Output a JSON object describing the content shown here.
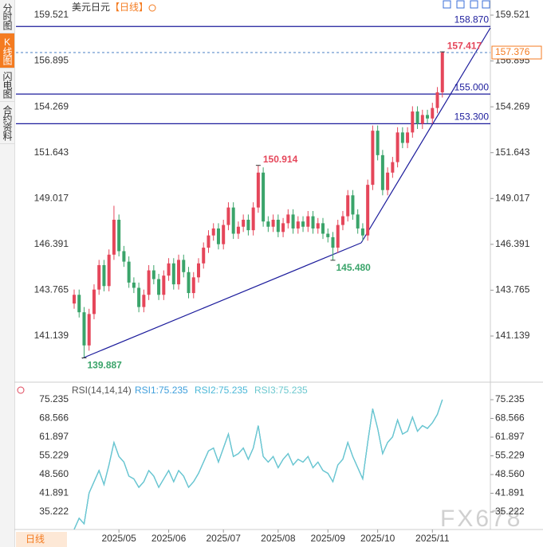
{
  "sidebar_tabs": [
    "分时图",
    "K线图",
    "闪电图",
    "合约资料"
  ],
  "active_tab": 1,
  "period_button": "日线",
  "watermark": "FX678",
  "chart_data": [
    {
      "type": "candlestick",
      "title": "美元日元",
      "period": "【日线】",
      "categories": [
        null,
        null,
        null,
        null,
        null,
        null,
        null,
        null,
        null,
        "2025/05",
        null,
        null,
        null,
        null,
        null,
        null,
        null,
        null,
        null,
        "2025/06",
        null,
        null,
        null,
        null,
        null,
        null,
        null,
        null,
        null,
        null,
        "2025/07",
        null,
        null,
        null,
        null,
        null,
        null,
        null,
        null,
        null,
        null,
        "2025/08",
        null,
        null,
        null,
        null,
        null,
        null,
        null,
        null,
        null,
        "2025/09",
        null,
        null,
        null,
        null,
        null,
        null,
        null,
        null,
        null,
        "2025/10",
        null,
        null,
        null,
        null,
        null,
        null,
        null,
        null,
        null,
        null,
        "2025/11",
        null,
        null
      ],
      "open": [
        143.0,
        143.5,
        142.5,
        140.6,
        142.4,
        143.8,
        145.2,
        144.0,
        145.8,
        147.8,
        146.0,
        145.4,
        144.2,
        143.9,
        142.8,
        143.5,
        144.9,
        144.4,
        143.5,
        144.6,
        145.3,
        144.1,
        145.5,
        144.8,
        143.6,
        144.5,
        145.3,
        146.2,
        146.9,
        147.3,
        146.4,
        147.5,
        148.5,
        147.0,
        147.4,
        147.8,
        147.2,
        148.5,
        150.5,
        147.7,
        147.4,
        147.8,
        147.1,
        147.6,
        148.1,
        147.3,
        147.7,
        147.4,
        148.0,
        147.3,
        147.6,
        147.0,
        146.8,
        146.2,
        147.5,
        148.0,
        149.2,
        148.1,
        147.3,
        146.9,
        149.8,
        152.9,
        151.5,
        149.5,
        150.5,
        151.1,
        152.8,
        152.2,
        152.8,
        154.0,
        153.3,
        153.8,
        153.6,
        154.2,
        155.1
      ],
      "high": [
        143.8,
        143.8,
        142.8,
        142.7,
        144.1,
        145.5,
        145.5,
        146.1,
        148.6,
        148.1,
        146.3,
        145.7,
        144.5,
        144.2,
        143.8,
        145.2,
        145.2,
        144.7,
        144.9,
        145.6,
        145.6,
        145.8,
        145.8,
        145.1,
        144.8,
        145.6,
        146.5,
        147.2,
        147.6,
        147.6,
        147.8,
        148.8,
        148.8,
        147.7,
        148.1,
        148.1,
        148.8,
        150.914,
        150.8,
        148.0,
        148.1,
        148.1,
        147.9,
        148.4,
        148.4,
        148.0,
        148.0,
        148.3,
        148.3,
        147.9,
        147.9,
        147.3,
        147.1,
        147.8,
        148.3,
        149.5,
        149.5,
        148.4,
        147.6,
        150.1,
        153.2,
        153.2,
        151.8,
        150.8,
        151.4,
        153.1,
        153.1,
        153.1,
        154.3,
        154.3,
        154.1,
        154.1,
        154.5,
        155.4,
        157.417
      ],
      "low": [
        142.7,
        142.2,
        139.887,
        140.3,
        142.1,
        143.5,
        143.7,
        143.7,
        145.5,
        145.7,
        145.1,
        143.9,
        143.6,
        142.5,
        142.5,
        143.2,
        144.1,
        143.2,
        143.2,
        144.3,
        143.8,
        143.8,
        144.5,
        143.3,
        143.3,
        144.2,
        145.0,
        145.9,
        146.6,
        146.1,
        146.1,
        147.2,
        146.7,
        146.7,
        147.1,
        146.9,
        146.9,
        148.2,
        147.4,
        147.1,
        147.1,
        146.8,
        146.8,
        147.3,
        147.0,
        147.0,
        147.1,
        147.1,
        147.0,
        147.0,
        146.7,
        146.5,
        145.48,
        145.9,
        147.2,
        147.7,
        147.8,
        147.0,
        146.6,
        146.6,
        149.5,
        151.2,
        149.2,
        149.2,
        150.2,
        150.8,
        151.9,
        151.9,
        152.5,
        153.0,
        153.0,
        153.3,
        153.3,
        153.9,
        154.8
      ],
      "close": [
        143.5,
        142.5,
        140.6,
        142.4,
        143.8,
        145.2,
        144.0,
        145.8,
        147.8,
        146.0,
        145.4,
        144.2,
        143.9,
        142.8,
        143.5,
        144.9,
        144.4,
        143.5,
        144.6,
        145.3,
        144.1,
        145.5,
        144.8,
        143.6,
        144.5,
        145.3,
        146.2,
        146.9,
        147.3,
        146.4,
        147.5,
        148.5,
        147.0,
        147.4,
        147.8,
        147.2,
        148.5,
        150.5,
        147.7,
        147.4,
        147.8,
        147.1,
        147.6,
        148.1,
        147.3,
        147.7,
        147.4,
        148.0,
        147.3,
        147.6,
        147.0,
        146.8,
        146.2,
        147.5,
        148.0,
        149.2,
        148.1,
        147.3,
        146.9,
        149.8,
        152.9,
        151.5,
        149.5,
        150.5,
        151.1,
        152.8,
        152.2,
        152.8,
        154.0,
        153.3,
        153.8,
        153.6,
        154.2,
        155.1,
        157.376
      ],
      "up_color": "#e5465a",
      "down_color": "#3aa46a",
      "high_labels": {
        "37": "150.914",
        "74": "157.417"
      },
      "low_labels": {
        "2": "139.887",
        "52": "145.480"
      },
      "hlines": [
        {
          "value": 158.87,
          "label": "158.870"
        },
        {
          "value": 155.0,
          "label": "155.000"
        },
        {
          "value": 153.3,
          "label": "153.300"
        }
      ],
      "hline_color": "#1c1c9c",
      "last_price_label": "157.376",
      "ylim": [
        138.586,
        160.387
      ],
      "yticks": [
        159.521,
        156.895,
        154.269,
        151.643,
        149.017,
        146.391,
        143.765,
        141.139
      ]
    },
    {
      "type": "line",
      "title": "RSI(14,14,14)",
      "series": [
        {
          "name": "RSI1:75.235",
          "color": "#3f9fdc",
          "values": [
            29,
            33,
            31,
            42,
            46,
            50,
            45,
            52,
            60,
            55,
            53,
            48,
            47,
            44,
            46,
            50,
            48,
            44,
            47,
            50,
            46,
            50,
            48,
            44,
            46,
            49,
            53,
            57,
            58,
            53,
            58,
            63,
            55,
            56,
            58,
            54,
            58,
            66,
            55,
            53,
            55,
            51,
            54,
            56,
            52,
            54,
            53,
            55,
            51,
            53,
            50,
            49,
            46,
            52,
            54,
            60,
            55,
            51,
            47,
            60,
            72,
            65,
            56,
            60,
            62,
            68,
            63,
            64,
            69,
            64,
            66,
            65,
            67,
            70,
            75.235
          ]
        },
        {
          "name": "RSI2:75.235",
          "color": "#4cb8d8",
          "values": [
            29,
            33,
            31,
            42,
            46,
            50,
            45,
            52,
            60,
            55,
            53,
            48,
            47,
            44,
            46,
            50,
            48,
            44,
            47,
            50,
            46,
            50,
            48,
            44,
            46,
            49,
            53,
            57,
            58,
            53,
            58,
            63,
            55,
            56,
            58,
            54,
            58,
            66,
            55,
            53,
            55,
            51,
            54,
            56,
            52,
            54,
            53,
            55,
            51,
            53,
            50,
            49,
            46,
            52,
            54,
            60,
            55,
            51,
            47,
            60,
            72,
            65,
            56,
            60,
            62,
            68,
            63,
            64,
            69,
            64,
            66,
            65,
            67,
            70,
            75.235
          ]
        },
        {
          "name": "RSI3:75.235",
          "color": "#6cc8cf",
          "values": [
            29,
            33,
            31,
            42,
            46,
            50,
            45,
            52,
            60,
            55,
            53,
            48,
            47,
            44,
            46,
            50,
            48,
            44,
            47,
            50,
            46,
            50,
            48,
            44,
            46,
            49,
            53,
            57,
            58,
            53,
            58,
            63,
            55,
            56,
            58,
            54,
            58,
            66,
            55,
            53,
            55,
            51,
            54,
            56,
            52,
            54,
            53,
            55,
            51,
            53,
            50,
            49,
            46,
            52,
            54,
            60,
            55,
            51,
            47,
            60,
            72,
            65,
            56,
            60,
            62,
            68,
            63,
            64,
            69,
            64,
            66,
            65,
            67,
            70,
            75.235
          ]
        }
      ],
      "ylim": [
        28.98,
        80.06
      ],
      "yticks": [
        75.235,
        68.566,
        61.897,
        55.229,
        {
          "value": 48.56,
          "label": "48.560"
        },
        41.891,
        35.222
      ]
    }
  ]
}
